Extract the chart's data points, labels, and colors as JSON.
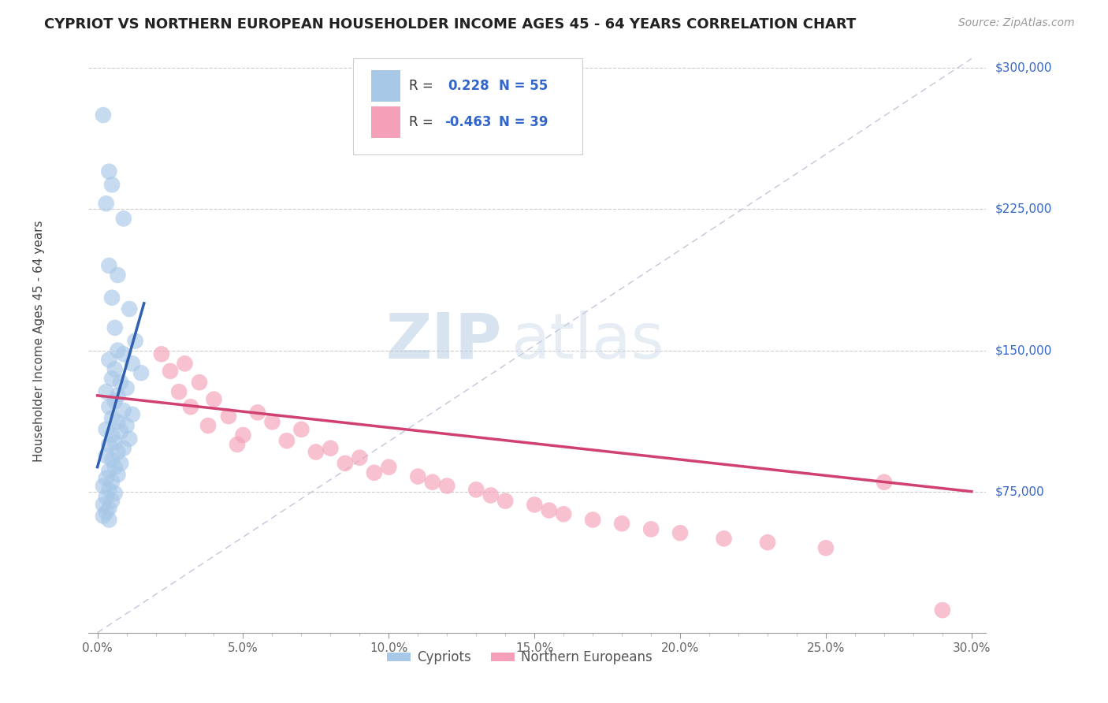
{
  "title": "CYPRIOT VS NORTHERN EUROPEAN HOUSEHOLDER INCOME AGES 45 - 64 YEARS CORRELATION CHART",
  "source": "Source: ZipAtlas.com",
  "xlabel_ticks": [
    "0.0%",
    "5.0%",
    "10.0%",
    "15.0%",
    "20.0%",
    "25.0%",
    "30.0%"
  ],
  "xlabel_vals": [
    0.0,
    0.05,
    0.1,
    0.15,
    0.2,
    0.25,
    0.3
  ],
  "ylabel_ticks": [
    "$75,000",
    "$150,000",
    "$225,000",
    "$300,000"
  ],
  "ylabel_vals": [
    75000,
    150000,
    225000,
    300000
  ],
  "xlim": [
    -0.002,
    0.305
  ],
  "ylim": [
    0,
    320000
  ],
  "plot_ylim": [
    0,
    305000
  ],
  "cypriot_R": 0.228,
  "cypriot_N": 55,
  "northern_R": -0.463,
  "northern_N": 39,
  "cypriot_color": "#a8c8e8",
  "northern_color": "#f4a0b8",
  "cypriot_line_color": "#3060b0",
  "northern_line_color": "#d04070",
  "legend_label_1": "Cypriots",
  "legend_label_2": "Northern Europeans",
  "ylabel": "Householder Income Ages 45 - 64 years",
  "watermark_zip": "ZIP",
  "watermark_atlas": "atlas",
  "diagonal_color": "#c0c8d8",
  "cypriot_points": [
    [
      0.002,
      275000
    ],
    [
      0.004,
      245000
    ],
    [
      0.005,
      238000
    ],
    [
      0.003,
      228000
    ],
    [
      0.009,
      220000
    ],
    [
      0.004,
      195000
    ],
    [
      0.007,
      190000
    ],
    [
      0.005,
      178000
    ],
    [
      0.011,
      172000
    ],
    [
      0.006,
      162000
    ],
    [
      0.013,
      155000
    ],
    [
      0.007,
      150000
    ],
    [
      0.009,
      148000
    ],
    [
      0.004,
      145000
    ],
    [
      0.012,
      143000
    ],
    [
      0.006,
      140000
    ],
    [
      0.015,
      138000
    ],
    [
      0.005,
      135000
    ],
    [
      0.008,
      133000
    ],
    [
      0.01,
      130000
    ],
    [
      0.003,
      128000
    ],
    [
      0.007,
      126000
    ],
    [
      0.006,
      123000
    ],
    [
      0.004,
      120000
    ],
    [
      0.009,
      118000
    ],
    [
      0.012,
      116000
    ],
    [
      0.005,
      114000
    ],
    [
      0.007,
      112000
    ],
    [
      0.01,
      110000
    ],
    [
      0.003,
      108000
    ],
    [
      0.008,
      107000
    ],
    [
      0.005,
      105000
    ],
    [
      0.011,
      103000
    ],
    [
      0.006,
      101000
    ],
    [
      0.004,
      100000
    ],
    [
      0.009,
      98000
    ],
    [
      0.007,
      96000
    ],
    [
      0.003,
      94000
    ],
    [
      0.005,
      92000
    ],
    [
      0.008,
      90000
    ],
    [
      0.006,
      88000
    ],
    [
      0.004,
      86000
    ],
    [
      0.007,
      84000
    ],
    [
      0.003,
      82000
    ],
    [
      0.005,
      80000
    ],
    [
      0.002,
      78000
    ],
    [
      0.004,
      76000
    ],
    [
      0.006,
      74000
    ],
    [
      0.003,
      72000
    ],
    [
      0.005,
      70000
    ],
    [
      0.002,
      68000
    ],
    [
      0.004,
      66000
    ],
    [
      0.003,
      64000
    ],
    [
      0.002,
      62000
    ],
    [
      0.004,
      60000
    ]
  ],
  "northern_points": [
    [
      0.022,
      148000
    ],
    [
      0.03,
      143000
    ],
    [
      0.025,
      139000
    ],
    [
      0.035,
      133000
    ],
    [
      0.028,
      128000
    ],
    [
      0.04,
      124000
    ],
    [
      0.032,
      120000
    ],
    [
      0.055,
      117000
    ],
    [
      0.045,
      115000
    ],
    [
      0.06,
      112000
    ],
    [
      0.038,
      110000
    ],
    [
      0.07,
      108000
    ],
    [
      0.05,
      105000
    ],
    [
      0.065,
      102000
    ],
    [
      0.048,
      100000
    ],
    [
      0.08,
      98000
    ],
    [
      0.075,
      96000
    ],
    [
      0.09,
      93000
    ],
    [
      0.085,
      90000
    ],
    [
      0.1,
      88000
    ],
    [
      0.095,
      85000
    ],
    [
      0.11,
      83000
    ],
    [
      0.115,
      80000
    ],
    [
      0.12,
      78000
    ],
    [
      0.13,
      76000
    ],
    [
      0.135,
      73000
    ],
    [
      0.14,
      70000
    ],
    [
      0.15,
      68000
    ],
    [
      0.155,
      65000
    ],
    [
      0.16,
      63000
    ],
    [
      0.17,
      60000
    ],
    [
      0.18,
      58000
    ],
    [
      0.19,
      55000
    ],
    [
      0.2,
      53000
    ],
    [
      0.215,
      50000
    ],
    [
      0.23,
      48000
    ],
    [
      0.25,
      45000
    ],
    [
      0.27,
      80000
    ],
    [
      0.29,
      12000
    ]
  ]
}
